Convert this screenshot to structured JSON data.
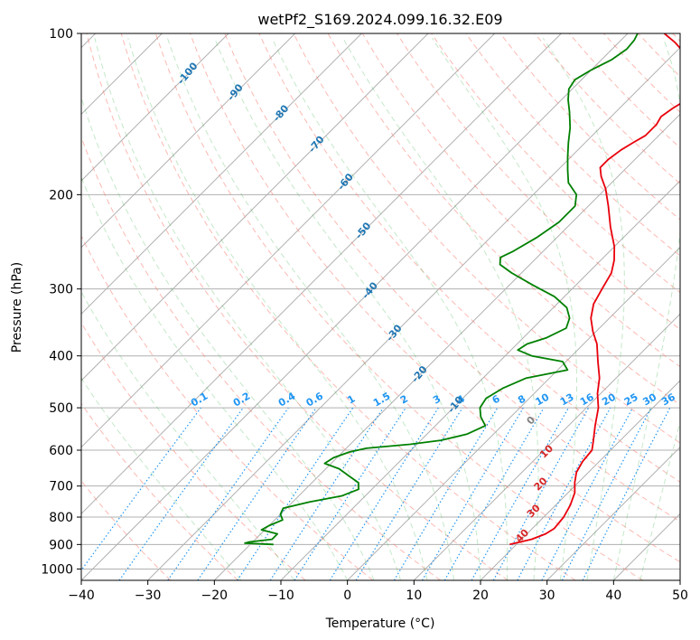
{
  "chart_data": {
    "type": "line",
    "title": "wetPf2_S169.2024.099.16.32.E09",
    "xlabel": "Temperature (°C)",
    "ylabel": "Pressure (hPa)",
    "xlim": [
      -40,
      50
    ],
    "ylim": [
      1050,
      100
    ],
    "y_scale": "log",
    "grid": true,
    "x_ticks": [
      -40,
      -30,
      -20,
      -10,
      0,
      10,
      20,
      30,
      40,
      50
    ],
    "x_tick_labels": [
      "−40",
      "−30",
      "−20",
      "−10",
      "0",
      "10",
      "20",
      "30",
      "40",
      "50"
    ],
    "y_ticks": [
      100,
      200,
      300,
      400,
      500,
      600,
      700,
      800,
      900,
      1000
    ],
    "y_tick_labels": [
      "100",
      "200",
      "300",
      "400",
      "500",
      "600",
      "700",
      "800",
      "900",
      "1000"
    ],
    "skew_deg": 45,
    "series": [
      {
        "color": "#e8000b",
        "points": [
          {
            "p": 900,
            "t": 19
          },
          {
            "p": 880,
            "t": 21.5
          },
          {
            "p": 860,
            "t": 22.8
          },
          {
            "p": 840,
            "t": 23.3
          },
          {
            "p": 800,
            "t": 23
          },
          {
            "p": 760,
            "t": 22.2
          },
          {
            "p": 720,
            "t": 21
          },
          {
            "p": 690,
            "t": 19.5
          },
          {
            "p": 660,
            "t": 18.2
          },
          {
            "p": 630,
            "t": 17.5
          },
          {
            "p": 600,
            "t": 17.2
          },
          {
            "p": 580,
            "t": 16.2
          },
          {
            "p": 540,
            "t": 14
          },
          {
            "p": 500,
            "t": 11.8
          },
          {
            "p": 470,
            "t": 9.5
          },
          {
            "p": 440,
            "t": 7.5
          },
          {
            "p": 410,
            "t": 4.8
          },
          {
            "p": 380,
            "t": 2
          },
          {
            "p": 360,
            "t": -0.5
          },
          {
            "p": 340,
            "t": -2.8
          },
          {
            "p": 320,
            "t": -4.5
          },
          {
            "p": 300,
            "t": -5.5
          },
          {
            "p": 280,
            "t": -6.5
          },
          {
            "p": 265,
            "t": -8
          },
          {
            "p": 250,
            "t": -10
          },
          {
            "p": 230,
            "t": -13.5
          },
          {
            "p": 210,
            "t": -17
          },
          {
            "p": 195,
            "t": -20
          },
          {
            "p": 185,
            "t": -22.5
          },
          {
            "p": 178,
            "t": -24
          },
          {
            "p": 172,
            "t": -24
          },
          {
            "p": 165,
            "t": -23.5
          },
          {
            "p": 160,
            "t": -22.8
          },
          {
            "p": 155,
            "t": -22
          },
          {
            "p": 148,
            "t": -22
          },
          {
            "p": 143,
            "t": -22.5
          },
          {
            "p": 138,
            "t": -22
          },
          {
            "p": 133,
            "t": -21.2
          },
          {
            "p": 128,
            "t": -21.5
          },
          {
            "p": 123,
            "t": -22.8
          },
          {
            "p": 118,
            "t": -24.5
          },
          {
            "p": 113,
            "t": -26.5
          },
          {
            "p": 108,
            "t": -29
          },
          {
            "p": 104,
            "t": -31.5
          },
          {
            "p": 100,
            "t": -34.5
          }
        ]
      },
      {
        "color": "#008000",
        "points": [
          {
            "p": 900,
            "t": -16.5
          },
          {
            "p": 895,
            "t": -21
          },
          {
            "p": 890,
            "t": -20.5
          },
          {
            "p": 880,
            "t": -17.5
          },
          {
            "p": 860,
            "t": -17.5
          },
          {
            "p": 845,
            "t": -20.5
          },
          {
            "p": 830,
            "t": -20
          },
          {
            "p": 810,
            "t": -18.8
          },
          {
            "p": 790,
            "t": -20
          },
          {
            "p": 770,
            "t": -20.5
          },
          {
            "p": 750,
            "t": -17.5
          },
          {
            "p": 730,
            "t": -13.5
          },
          {
            "p": 710,
            "t": -12
          },
          {
            "p": 690,
            "t": -13
          },
          {
            "p": 670,
            "t": -15.5
          },
          {
            "p": 650,
            "t": -18
          },
          {
            "p": 635,
            "t": -21
          },
          {
            "p": 620,
            "t": -20.5
          },
          {
            "p": 605,
            "t": -19
          },
          {
            "p": 595,
            "t": -17
          },
          {
            "p": 585,
            "t": -11
          },
          {
            "p": 575,
            "t": -7
          },
          {
            "p": 560,
            "t": -4
          },
          {
            "p": 540,
            "t": -2.5
          },
          {
            "p": 520,
            "t": -4.5
          },
          {
            "p": 500,
            "t": -6
          },
          {
            "p": 480,
            "t": -6.5
          },
          {
            "p": 460,
            "t": -5.5
          },
          {
            "p": 440,
            "t": -3.5
          },
          {
            "p": 425,
            "t": 1.5
          },
          {
            "p": 410,
            "t": -0.5
          },
          {
            "p": 400,
            "t": -6
          },
          {
            "p": 390,
            "t": -9
          },
          {
            "p": 380,
            "t": -8.5
          },
          {
            "p": 370,
            "t": -6.5
          },
          {
            "p": 355,
            "t": -5
          },
          {
            "p": 340,
            "t": -6
          },
          {
            "p": 325,
            "t": -8
          },
          {
            "p": 310,
            "t": -11.5
          },
          {
            "p": 295,
            "t": -16.5
          },
          {
            "p": 280,
            "t": -21.5
          },
          {
            "p": 270,
            "t": -24.5
          },
          {
            "p": 262,
            "t": -25.5
          },
          {
            "p": 255,
            "t": -24.5
          },
          {
            "p": 240,
            "t": -23
          },
          {
            "p": 225,
            "t": -22
          },
          {
            "p": 210,
            "t": -22
          },
          {
            "p": 200,
            "t": -23.5
          },
          {
            "p": 190,
            "t": -26.5
          },
          {
            "p": 180,
            "t": -28.5
          },
          {
            "p": 170,
            "t": -30.5
          },
          {
            "p": 160,
            "t": -32.5
          },
          {
            "p": 150,
            "t": -34.5
          },
          {
            "p": 140,
            "t": -37
          },
          {
            "p": 133,
            "t": -39
          },
          {
            "p": 127,
            "t": -40.5
          },
          {
            "p": 122,
            "t": -41
          },
          {
            "p": 117,
            "t": -40
          },
          {
            "p": 112,
            "t": -38.5
          },
          {
            "p": 107,
            "t": -37.8
          },
          {
            "p": 103,
            "t": -38
          },
          {
            "p": 100,
            "t": -38.5
          }
        ]
      }
    ],
    "mixing_ratio_labels": [
      "0.1",
      "0.2",
      "0.4",
      "0.6",
      "1",
      "1.5",
      "2",
      "3",
      "4",
      "6",
      "8",
      "10",
      "13",
      "16",
      "20",
      "25",
      "30",
      "36"
    ],
    "mixing_ratio_values": [
      0.1,
      0.2,
      0.4,
      0.6,
      1,
      1.5,
      2,
      3,
      4,
      6,
      8,
      10,
      13,
      16,
      20,
      25,
      30,
      36
    ],
    "dry_adiabat_labels": [
      "-100",
      "-90",
      "-80",
      "-70",
      "-60",
      "-50",
      "-40",
      "-30",
      "-20",
      "-10"
    ],
    "moist_adiabat_labels": [
      "0",
      "10",
      "20",
      "30",
      "40"
    ]
  }
}
